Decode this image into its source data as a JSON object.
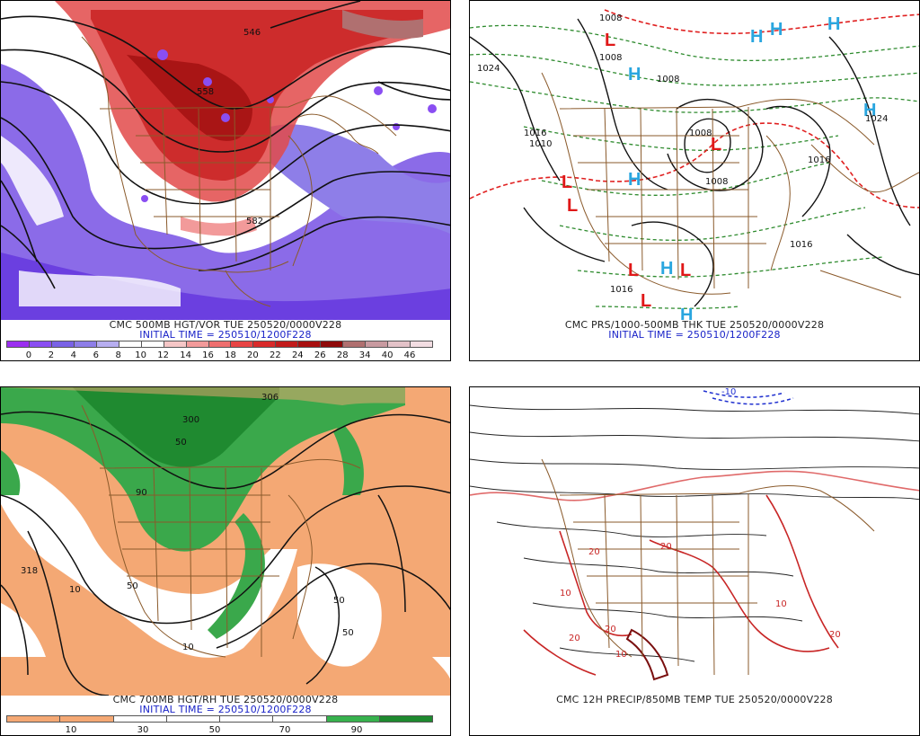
{
  "panels": {
    "p1": {
      "caption": "CMC 500MB HGT/VOR TUE 250520/0000V228",
      "initial": "INITIAL TIME = 250510/1200F228",
      "contour_labels": [
        "546",
        "558",
        "582"
      ],
      "scale_colors": [
        "#9b2ff0",
        "#8a4ef2",
        "#7a62e6",
        "#8e7ee8",
        "#b7aef0",
        "#ffffff",
        "#ffffff",
        "#f5c6c6",
        "#f29a9a",
        "#ee6f6f",
        "#e84545",
        "#d92a2a",
        "#c21b1b",
        "#a80f0f",
        "#8f0a0a",
        "#b07070",
        "#c89aa0",
        "#e3c2c8",
        "#f2dde2"
      ],
      "scale_ticks": [
        "0",
        "2",
        "4",
        "6",
        "8",
        "10",
        "12",
        "14",
        "16",
        "18",
        "20",
        "22",
        "24",
        "26",
        "28",
        "34",
        "40",
        "46"
      ]
    },
    "p2": {
      "caption": "CMC PRS/1000-500MB THK TUE 250520/0000V228",
      "initial": "INITIAL TIME = 250510/1200F228",
      "iso_labels": [
        "1008",
        "1008",
        "1024",
        "1008",
        "1016",
        "1008",
        "1008",
        "1010",
        "1016",
        "1016",
        "1024",
        "1016"
      ],
      "highs": [
        "H",
        "H",
        "H",
        "H",
        "H",
        "H",
        "H",
        "H"
      ],
      "lows": [
        "L",
        "L",
        "L",
        "L",
        "L",
        "L",
        "L"
      ]
    },
    "p3": {
      "caption": "CMC 700MB HGT/RH TUE 250520/0000V228",
      "initial": "INITIAL TIME = 250510/1200F228",
      "contour_labels": [
        "306",
        "318",
        "300",
        "50",
        "50",
        "10",
        "10",
        "50",
        "90",
        "50"
      ],
      "scale_colors": [
        "#f4a874",
        "#f4a874",
        "#ffffff",
        "#ffffff",
        "#ffffff",
        "#ffffff",
        "#37b24d",
        "#1e8a2f"
      ],
      "scale_ticks": [
        "10",
        "30",
        "50",
        "70",
        "90"
      ]
    },
    "p4": {
      "caption": "CMC 12H PRECIP/850MB TEMP TUE 250520/0000V228",
      "temp_labels": [
        "-10",
        "20",
        "20",
        "10",
        "10",
        "20",
        "20",
        "20",
        "10"
      ]
    }
  }
}
